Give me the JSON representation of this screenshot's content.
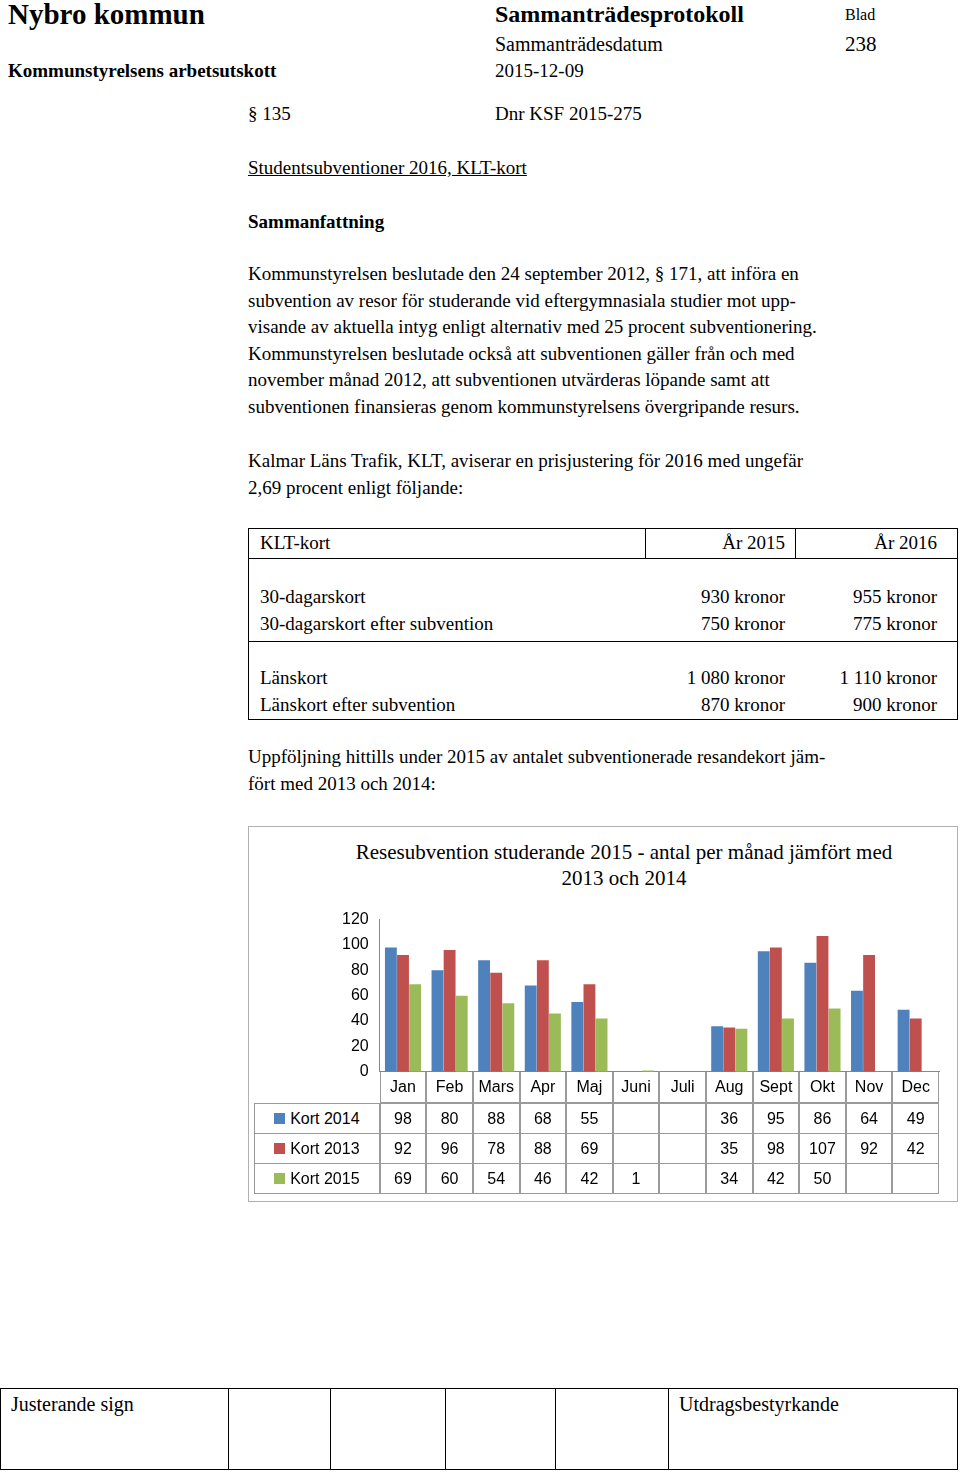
{
  "header": {
    "municipality": "Nybro kommun",
    "document_type": "Sammanträdesprotokoll",
    "page_label": "Blad",
    "date_label": "Sammanträdesdatum",
    "page_number": "238",
    "committee": "Kommunstyrelsens arbetsutskott",
    "date": "2015-12-09"
  },
  "item": {
    "paragraph": "§ 135",
    "dnr": "Dnr KSF 2015-275",
    "title": "Studentsubventioner 2016, KLT-kort",
    "heading": "Sammanfattning"
  },
  "summary": [
    "Kommunstyrelsen beslutade den 24 september 2012, § 171, att införa en",
    "subvention av resor för studerande vid eftergymnasiala studier mot upp-",
    "visande av aktuella intyg enligt alternativ med 25 procent subventionering.",
    "Kommunstyrelsen beslutade också att subventionen gäller från och med",
    "november månad 2012, att subventionen utvärderas löpande samt att",
    "subventionen finansieras genom kommunstyrelsens övergripande resurs."
  ],
  "price_intro": [
    "Kalmar Läns Trafik, KLT, aviserar en prisjustering för 2016 med ungefär",
    "2,69 procent enligt följande:"
  ],
  "price_table": {
    "header": [
      "KLT-kort",
      "År 2015",
      "År 2016"
    ],
    "groups": [
      [
        [
          "30-dagarskort",
          "930 kronor",
          "955 kronor"
        ],
        [
          "30-dagarskort efter subvention",
          "750 kronor",
          "775 kronor"
        ]
      ],
      [
        [
          "Länskort",
          "1 080 kronor",
          "1 110 kronor"
        ],
        [
          "Länskort efter subvention",
          "870 kronor",
          "900 kronor"
        ]
      ]
    ]
  },
  "followup": [
    "Uppföljning hittills under 2015 av antalet subventionerade resandekort jäm-",
    "fört med 2013 och 2014:"
  ],
  "chart_data": {
    "type": "bar",
    "title": "Resesubvention studerande 2015 - antal per månad jämfört med 2013 och 2014",
    "categories": [
      "Jan",
      "Feb",
      "Mars",
      "Apr",
      "Maj",
      "Juni",
      "Juli",
      "Aug",
      "Sept",
      "Okt",
      "Nov",
      "Dec"
    ],
    "series": [
      {
        "name": "Kort 2014",
        "color": "#4f81bd",
        "values": [
          98,
          80,
          88,
          68,
          55,
          null,
          null,
          36,
          95,
          86,
          64,
          49
        ]
      },
      {
        "name": "Kort 2013",
        "color": "#c0504d",
        "values": [
          92,
          96,
          78,
          88,
          69,
          null,
          null,
          35,
          98,
          107,
          92,
          42
        ]
      },
      {
        "name": "Kort 2015",
        "color": "#9bbb59",
        "values": [
          69,
          60,
          54,
          46,
          42,
          1,
          null,
          34,
          42,
          50,
          null,
          null
        ]
      }
    ],
    "ylim": [
      0,
      120
    ],
    "yticks": [
      0,
      20,
      40,
      60,
      80,
      100,
      120
    ],
    "grid": false
  },
  "footer": {
    "left": "Justerande sign",
    "right": "Utdragsbestyrkande"
  }
}
